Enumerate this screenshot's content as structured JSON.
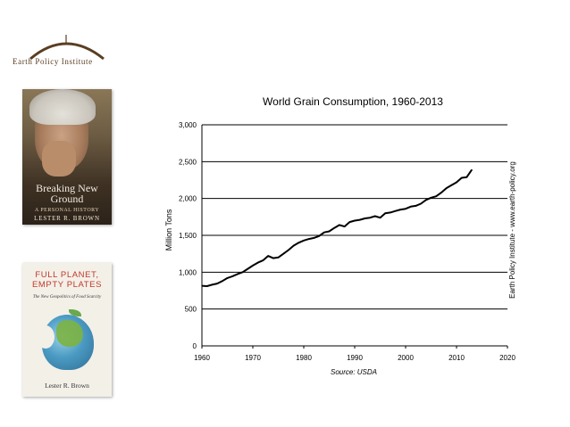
{
  "branding": {
    "logo_text": "Earth Policy Institute",
    "side_credit": "Earth Policy Institute - www.earth-policy.org",
    "brand_color": "#5a3e22"
  },
  "books": [
    {
      "title": "Breaking New Ground",
      "subtitle": "A PERSONAL HISTORY",
      "author": "LESTER R. BROWN"
    },
    {
      "title": "FULL PLANET, EMPTY PLATES",
      "subtitle": "The New Geopolitics of Food Scarcity",
      "author": "Lester R. Brown",
      "title_color": "#c0392b"
    }
  ],
  "chart_data": {
    "type": "line",
    "title": "World Grain Consumption, 1960-2013",
    "xlabel": "",
    "ylabel": "Million Tons",
    "source": "Source: USDA",
    "xlim": [
      1960,
      2020
    ],
    "ylim": [
      0,
      3000
    ],
    "xticks": [
      1960,
      1970,
      1980,
      1990,
      2000,
      2010,
      2020
    ],
    "yticks": [
      0,
      500,
      1000,
      1500,
      2000,
      2500,
      3000
    ],
    "ytick_labels": [
      "0",
      "500",
      "1,000",
      "1,500",
      "2,000",
      "2,500",
      "3,000"
    ],
    "grid": "horizontal",
    "line_color": "#000000",
    "series": [
      {
        "name": "",
        "x": [
          1960,
          1961,
          1962,
          1963,
          1964,
          1965,
          1966,
          1967,
          1968,
          1969,
          1970,
          1971,
          1972,
          1973,
          1974,
          1975,
          1976,
          1977,
          1978,
          1979,
          1980,
          1981,
          1982,
          1983,
          1984,
          1985,
          1986,
          1987,
          1988,
          1989,
          1990,
          1991,
          1992,
          1993,
          1994,
          1995,
          1996,
          1997,
          1998,
          1999,
          2000,
          2001,
          2002,
          2003,
          2004,
          2005,
          2006,
          2007,
          2008,
          2009,
          2010,
          2011,
          2012,
          2013
        ],
        "y": [
          815,
          810,
          830,
          845,
          880,
          920,
          945,
          975,
          1000,
          1045,
          1090,
          1130,
          1160,
          1220,
          1190,
          1200,
          1250,
          1300,
          1360,
          1400,
          1430,
          1450,
          1465,
          1490,
          1540,
          1555,
          1600,
          1640,
          1620,
          1680,
          1700,
          1710,
          1730,
          1740,
          1760,
          1740,
          1800,
          1810,
          1830,
          1850,
          1860,
          1890,
          1900,
          1930,
          1980,
          2010,
          2030,
          2080,
          2140,
          2180,
          2220,
          2280,
          2290,
          2390
        ]
      }
    ]
  }
}
